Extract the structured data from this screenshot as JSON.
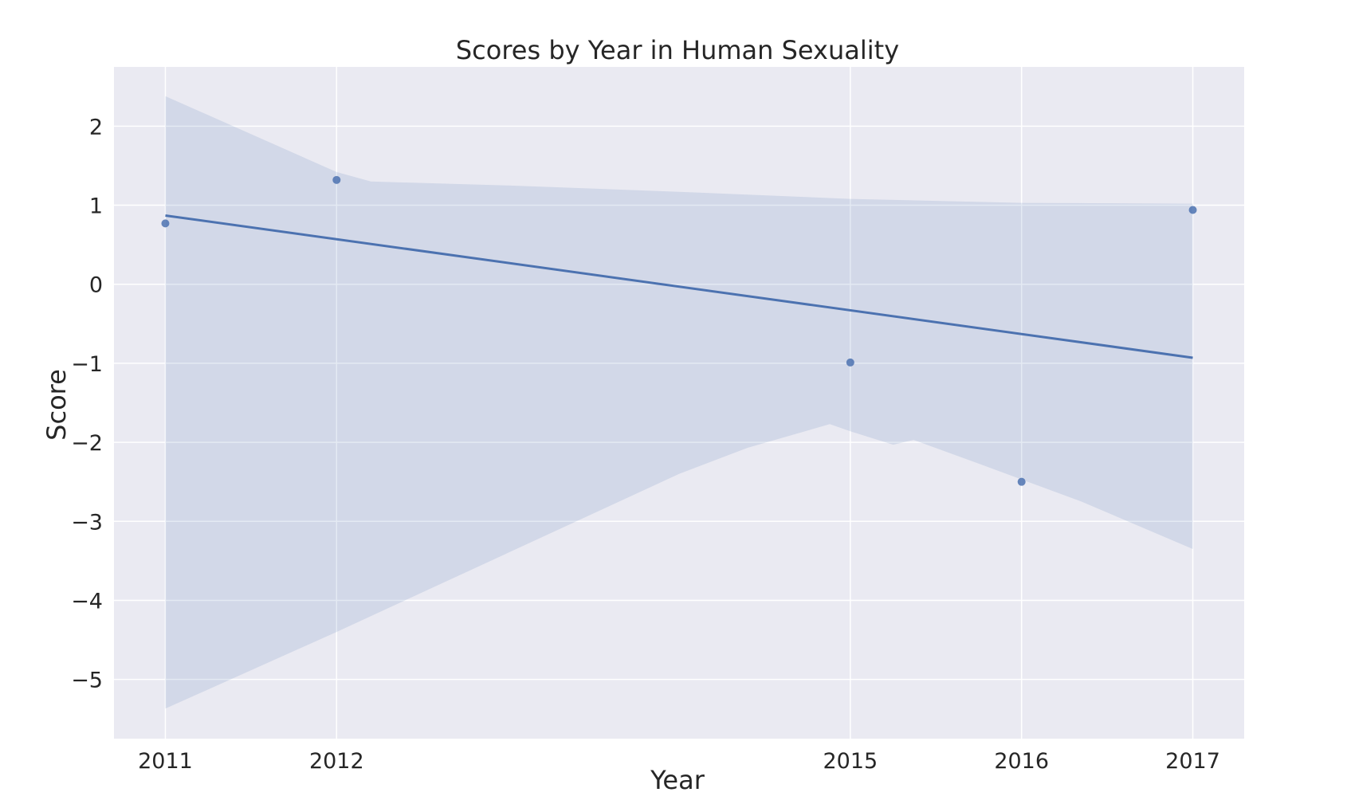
{
  "chart_data": {
    "type": "scatter",
    "title": "Scores by Year in Human Sexuality",
    "xlabel": "Year",
    "ylabel": "Score",
    "x_ticks": [
      2011,
      2012,
      2015,
      2016,
      2017
    ],
    "x_tick_labels": [
      "2011",
      "2012",
      "2015",
      "2016",
      "2017"
    ],
    "y_ticks": [
      -5,
      -4,
      -3,
      -2,
      -1,
      0,
      1,
      2
    ],
    "y_tick_labels": [
      "−5",
      "−4",
      "−3",
      "−2",
      "−1",
      "0",
      "1",
      "2"
    ],
    "xlim": [
      2010.7,
      2017.3
    ],
    "ylim": [
      -5.75,
      2.75
    ],
    "grid": true,
    "points": [
      {
        "x": 2011,
        "y": 0.77
      },
      {
        "x": 2012,
        "y": 1.32
      },
      {
        "x": 2015,
        "y": -0.99
      },
      {
        "x": 2016,
        "y": -2.5
      },
      {
        "x": 2017,
        "y": 0.94
      }
    ],
    "regression_line": [
      {
        "x": 2011,
        "y": 0.87
      },
      {
        "x": 2017,
        "y": -0.93
      }
    ],
    "confidence_band": {
      "upper": [
        {
          "x": 2011,
          "y": 2.38
        },
        {
          "x": 2012,
          "y": 1.42
        },
        {
          "x": 2012.2,
          "y": 1.3
        },
        {
          "x": 2013,
          "y": 1.25
        },
        {
          "x": 2014,
          "y": 1.17
        },
        {
          "x": 2015,
          "y": 1.08
        },
        {
          "x": 2016,
          "y": 1.03
        },
        {
          "x": 2017,
          "y": 1.02
        }
      ],
      "lower": [
        {
          "x": 2011,
          "y": -5.37
        },
        {
          "x": 2012,
          "y": -4.4
        },
        {
          "x": 2013,
          "y": -3.4
        },
        {
          "x": 2014,
          "y": -2.4
        },
        {
          "x": 2014.4,
          "y": -2.07
        },
        {
          "x": 2014.88,
          "y": -1.77
        },
        {
          "x": 2015,
          "y": -1.86
        },
        {
          "x": 2015.25,
          "y": -2.03
        },
        {
          "x": 2015.37,
          "y": -1.97
        },
        {
          "x": 2015.75,
          "y": -2.27
        },
        {
          "x": 2016,
          "y": -2.47
        },
        {
          "x": 2016.35,
          "y": -2.75
        },
        {
          "x": 2017,
          "y": -3.35
        }
      ]
    },
    "colors": {
      "background": "#eaeaf2",
      "grid": "#ffffff",
      "line": "#4c72b0",
      "point": "#4c72b0",
      "band": "#c7d0e6"
    }
  }
}
